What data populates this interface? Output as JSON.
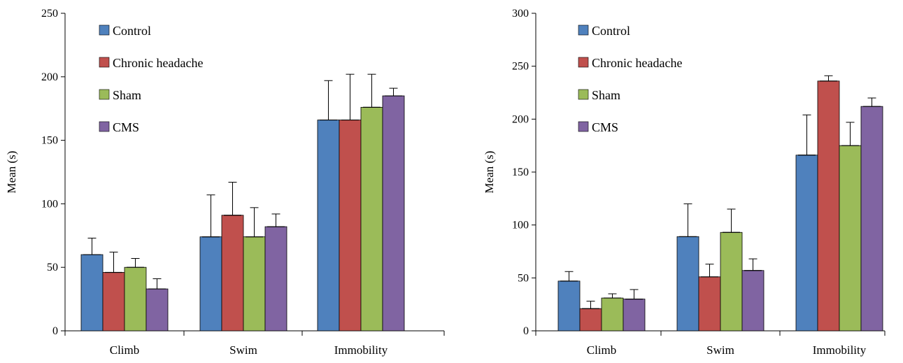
{
  "chart_data": [
    {
      "type": "bar",
      "title": "",
      "xlabel": "",
      "ylabel": "Mean (s)",
      "ylim": [
        0,
        250
      ],
      "yticks": [
        0,
        50,
        100,
        150,
        200,
        250
      ],
      "categories": [
        "Climb",
        "Swim",
        "Immobility"
      ],
      "legend_position": "top-left",
      "grid": false,
      "series": [
        {
          "name": "Control",
          "color": "#4f81bd",
          "values": [
            60,
            74,
            166
          ],
          "errors": [
            13,
            33,
            31
          ]
        },
        {
          "name": "Chronic headache",
          "color": "#c0504d",
          "values": [
            46,
            91,
            166
          ],
          "errors": [
            16,
            26,
            36
          ]
        },
        {
          "name": "Sham",
          "color": "#9bbb59",
          "values": [
            50,
            74,
            176
          ],
          "errors": [
            7,
            23,
            26
          ]
        },
        {
          "name": "CMS",
          "color": "#8064a2",
          "values": [
            33,
            82,
            185
          ],
          "errors": [
            8,
            10,
            6
          ]
        }
      ]
    },
    {
      "type": "bar",
      "title": "",
      "xlabel": "",
      "ylabel": "Mean (s)",
      "ylim": [
        0,
        300
      ],
      "yticks": [
        0,
        50,
        100,
        150,
        200,
        250,
        300
      ],
      "categories": [
        "Climb",
        "Swim",
        "Immobility"
      ],
      "legend_position": "top-left",
      "grid": false,
      "series": [
        {
          "name": "Control",
          "color": "#4f81bd",
          "values": [
            47,
            89,
            166
          ],
          "errors": [
            9,
            31,
            38
          ]
        },
        {
          "name": "Chronic headache",
          "color": "#c0504d",
          "values": [
            21,
            51,
            236
          ],
          "errors": [
            7,
            12,
            5
          ]
        },
        {
          "name": "Sham",
          "color": "#9bbb59",
          "values": [
            31,
            93,
            175
          ],
          "errors": [
            4,
            22,
            22
          ]
        },
        {
          "name": "CMS",
          "color": "#8064a2",
          "values": [
            30,
            57,
            212
          ],
          "errors": [
            9,
            11,
            8
          ]
        }
      ]
    }
  ]
}
